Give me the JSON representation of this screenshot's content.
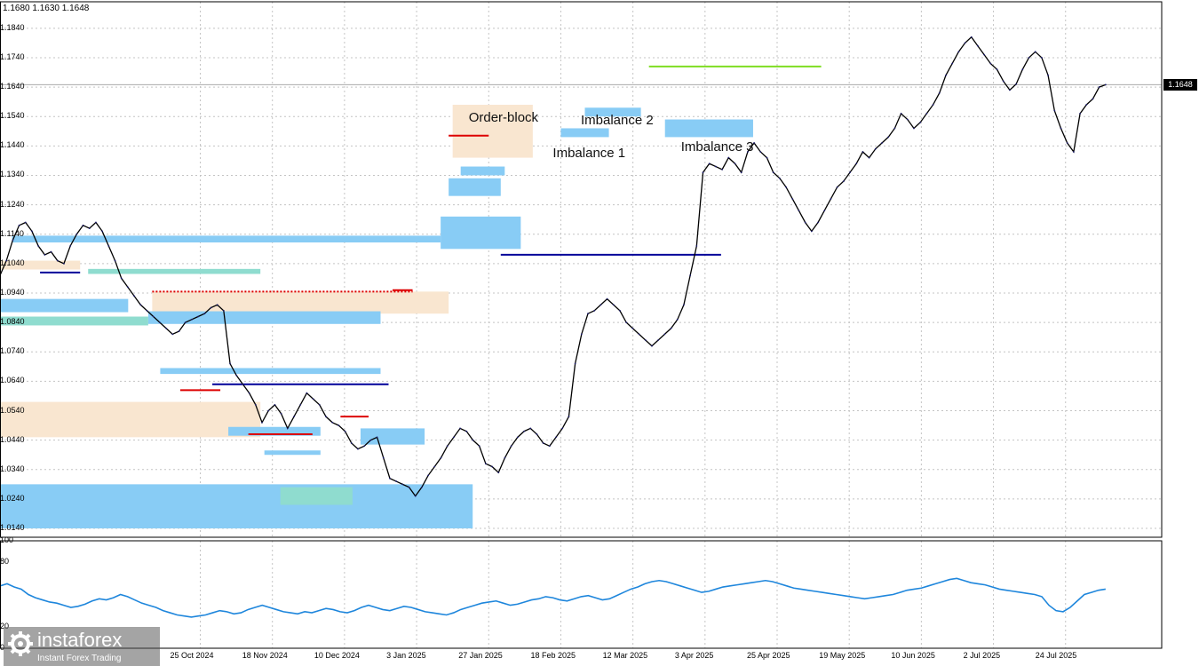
{
  "header": {
    "ohlc": "1.1680 1.1630 1.1648"
  },
  "current_price": {
    "label": "1.1648",
    "value": 1.1648
  },
  "chart_data": {
    "type": "line",
    "title": "",
    "main": {
      "y_ticks": [
        "1.1840",
        "1.1740",
        "1.1640",
        "1.1540",
        "1.1440",
        "1.1340",
        "1.1240",
        "1.1140",
        "1.1040",
        "1.0940",
        "1.0840",
        "1.0740",
        "1.0640",
        "1.0540",
        "1.0440",
        "1.0340",
        "1.0240",
        "1.0140"
      ],
      "ylim": [
        1.011,
        1.193
      ],
      "x_ticks": [
        "25 Oct 2024",
        "18 Nov 2024",
        "10 Dec 2024",
        "3 Jan 2025",
        "27 Jan 2025",
        "18 Feb 2025",
        "12 Mar 2025",
        "3 Apr 2025",
        "25 Apr 2025",
        "19 May 2025",
        "10 Jun 2025",
        "2 Jul 2025",
        "24 Jul 2025"
      ],
      "x_tick_index": [
        50,
        68,
        86,
        104,
        122,
        140,
        158,
        176,
        194,
        212,
        230,
        248,
        266
      ],
      "x_index_range": [
        0,
        290
      ],
      "series": [
        {
          "values": [
            1.1,
            1.105,
            1.112,
            1.117,
            1.118,
            1.115,
            1.11,
            1.107,
            1.108,
            1.105,
            1.104,
            1.11,
            1.114,
            1.117,
            1.116,
            1.118,
            1.115,
            1.11,
            1.105,
            1.099,
            1.096,
            1.093,
            1.09,
            1.088,
            1.086,
            1.084,
            1.082,
            1.08,
            1.081,
            1.084,
            1.085,
            1.086,
            1.087,
            1.089,
            1.09,
            1.088,
            1.07,
            1.066,
            1.063,
            1.06,
            1.056,
            1.05,
            1.054,
            1.056,
            1.053,
            1.048,
            1.052,
            1.056,
            1.06,
            1.058,
            1.056,
            1.052,
            1.05,
            1.049,
            1.047,
            1.043,
            1.041,
            1.042,
            1.044,
            1.045,
            1.038,
            1.031,
            1.03,
            1.029,
            1.028,
            1.025,
            1.028,
            1.032,
            1.035,
            1.038,
            1.042,
            1.045,
            1.048,
            1.047,
            1.044,
            1.042,
            1.036,
            1.035,
            1.033,
            1.038,
            1.042,
            1.045,
            1.047,
            1.048,
            1.046,
            1.043,
            1.042,
            1.045,
            1.048,
            1.052,
            1.07,
            1.08,
            1.087,
            1.088,
            1.09,
            1.092,
            1.09,
            1.088,
            1.084,
            1.082,
            1.08,
            1.078,
            1.076,
            1.078,
            1.08,
            1.082,
            1.085,
            1.09,
            1.1,
            1.11,
            1.135,
            1.138,
            1.137,
            1.136,
            1.14,
            1.138,
            1.135,
            1.142,
            1.145,
            1.142,
            1.14,
            1.135,
            1.133,
            1.13,
            1.126,
            1.122,
            1.118,
            1.115,
            1.118,
            1.122,
            1.126,
            1.13,
            1.132,
            1.135,
            1.138,
            1.142,
            1.14,
            1.143,
            1.145,
            1.147,
            1.15,
            1.155,
            1.153,
            1.15,
            1.152,
            1.155,
            1.158,
            1.162,
            1.168,
            1.172,
            1.176,
            1.179,
            1.181,
            1.178,
            1.175,
            1.172,
            1.17,
            1.166,
            1.163,
            1.165,
            1.17,
            1.174,
            1.176,
            1.174,
            1.168,
            1.156,
            1.15,
            1.145,
            1.142,
            1.155,
            1.158,
            1.16,
            1.164,
            1.1648
          ]
        }
      ],
      "annotations": [
        "Order-block",
        "Imbalance 2",
        "Imbalance 1",
        "Imbalance 3"
      ],
      "zones": {
        "imbalance": [
          {
            "x": [
              3,
              110
            ],
            "y": [
              1.1112,
              1.1135
            ]
          },
          {
            "x": [
              0,
              32
            ],
            "y": [
              1.0875,
              1.092
            ]
          },
          {
            "x": [
              37,
              95
            ],
            "y": [
              1.0835,
              1.0878
            ]
          },
          {
            "x": [
              40,
              95
            ],
            "y": [
              1.0665,
              1.0685
            ]
          },
          {
            "x": [
              0,
              118
            ],
            "y": [
              1.014,
              1.029
            ]
          },
          {
            "x": [
              57,
              80
            ],
            "y": [
              1.0455,
              1.0485
            ]
          },
          {
            "x": [
              90,
              106
            ],
            "y": [
              1.0425,
              1.048
            ]
          },
          {
            "x": [
              66,
              80
            ],
            "y": [
              1.039,
              1.0405
            ]
          },
          {
            "x": [
              110,
              130
            ],
            "y": [
              1.109,
              1.12
            ]
          },
          {
            "x": [
              112,
              125
            ],
            "y": [
              1.127,
              1.133
            ]
          },
          {
            "x": [
              115,
              126
            ],
            "y": [
              1.134,
              1.137
            ]
          },
          {
            "x": [
              140,
              152
            ],
            "y": [
              1.147,
              1.15
            ]
          },
          {
            "x": [
              146,
              160
            ],
            "y": [
              1.154,
              1.157
            ]
          },
          {
            "x": [
              166,
              188
            ],
            "y": [
              1.147,
              1.153
            ]
          }
        ],
        "order_block": [
          {
            "x": [
              0,
              20
            ],
            "y": [
              1.102,
              1.105
            ]
          },
          {
            "x": [
              38,
              112
            ],
            "y": [
              1.087,
              1.0945
            ]
          },
          {
            "x": [
              0,
              65
            ],
            "y": [
              1.045,
              1.057
            ]
          },
          {
            "x": [
              113,
              133
            ],
            "y": [
              1.14,
              1.158
            ]
          }
        ],
        "support": [
          {
            "x": [
              0,
              37
            ],
            "y": [
              1.083,
              1.086
            ]
          },
          {
            "x": [
              22,
              65
            ],
            "y": [
              1.1005,
              1.1022
            ]
          },
          {
            "x": [
              70,
              88
            ],
            "y": [
              1.022,
              1.028
            ]
          }
        ]
      },
      "levels": [
        {
          "x": [
            38,
            103
          ],
          "y": 1.0945,
          "color": "#dd0000",
          "style": "dotted"
        },
        {
          "x": [
            112,
            122
          ],
          "y": 1.1475,
          "color": "#dd0000",
          "style": "solid"
        },
        {
          "x": [
            53,
            97
          ],
          "y": 1.063,
          "color": "#000099",
          "style": "solid"
        },
        {
          "x": [
            125,
            180
          ],
          "y": 1.107,
          "color": "#000099",
          "style": "solid"
        },
        {
          "x": [
            162,
            205
          ],
          "y": 1.171,
          "color": "#7fdd22",
          "style": "solid"
        },
        {
          "x": [
            10,
            20
          ],
          "y": 1.101,
          "color": "#000099",
          "style": "solid"
        },
        {
          "x": [
            45,
            55
          ],
          "y": 1.061,
          "color": "#dd0000",
          "style": "solid"
        },
        {
          "x": [
            62,
            78
          ],
          "y": 1.046,
          "color": "#dd0000",
          "style": "solid"
        },
        {
          "x": [
            85,
            92
          ],
          "y": 1.052,
          "color": "#dd0000",
          "style": "solid"
        },
        {
          "x": [
            98,
            103
          ],
          "y": 1.095,
          "color": "#dd0000",
          "style": "solid"
        }
      ],
      "annotation_pos": [
        {
          "x": 117,
          "y": 1.1535
        },
        {
          "x": 145,
          "y": 1.1525
        },
        {
          "x": 138,
          "y": 1.1415
        },
        {
          "x": 170,
          "y": 1.1435
        }
      ]
    },
    "indicator": {
      "y_ticks": [
        "100",
        "80",
        "20",
        "0"
      ],
      "ylim": [
        0,
        100
      ],
      "values": [
        58,
        60,
        57,
        55,
        50,
        47,
        45,
        43,
        42,
        40,
        38,
        39,
        41,
        44,
        46,
        45,
        47,
        50,
        48,
        45,
        42,
        40,
        38,
        35,
        33,
        31,
        30,
        29,
        30,
        31,
        33,
        35,
        34,
        32,
        33,
        36,
        38,
        40,
        38,
        36,
        34,
        33,
        32,
        34,
        33,
        35,
        37,
        36,
        34,
        33,
        35,
        38,
        40,
        38,
        36,
        35,
        37,
        39,
        38,
        36,
        34,
        33,
        32,
        31,
        33,
        36,
        38,
        40,
        42,
        43,
        44,
        42,
        40,
        41,
        43,
        45,
        46,
        48,
        47,
        45,
        44,
        46,
        48,
        49,
        47,
        45,
        46,
        49,
        52,
        55,
        57,
        60,
        62,
        63,
        62,
        60,
        58,
        56,
        54,
        52,
        53,
        55,
        57,
        58,
        59,
        60,
        61,
        62,
        63,
        62,
        60,
        58,
        56,
        55,
        54,
        53,
        52,
        51,
        50,
        49,
        48,
        47,
        46,
        47,
        48,
        49,
        50,
        52,
        54,
        55,
        56,
        58,
        60,
        62,
        64,
        65,
        63,
        61,
        60,
        59,
        57,
        55,
        54,
        53,
        52,
        51,
        50,
        48,
        40,
        35,
        34,
        38,
        44,
        50,
        52,
        54,
        55
      ]
    }
  },
  "branding": {
    "name": "instaforex",
    "tagline": "Instant Forex Trading"
  },
  "colors": {
    "imbalance": "#88ccf5",
    "order_block": "#f9e6d0",
    "support": "#8fdccf",
    "price_line": "#000000",
    "indicator_line": "#1e86dc",
    "grid": "#c4c4c4"
  }
}
